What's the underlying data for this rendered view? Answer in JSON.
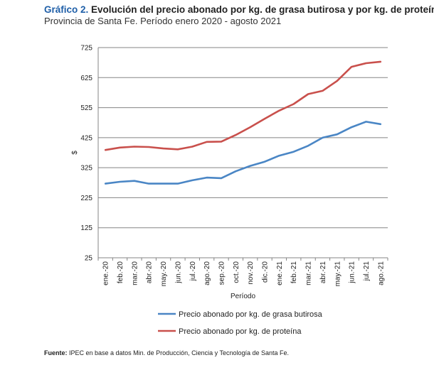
{
  "header": {
    "title_prefix": "Gráfico 2.",
    "title_rest": "Evolución del precio abonado por kg. de grasa butirosa y por kg. de proteína.",
    "subtitle": "Provincia de Santa Fe. Período enero 2020 - agosto 2021"
  },
  "footer": {
    "source_label": "Fuente:",
    "source_text": "IPEC en base a datos Min. de Producción, Ciencia y Tecnología de Santa Fe."
  },
  "chart_data": {
    "type": "line",
    "xlabel": "Período",
    "ylabel": "$",
    "ylim": [
      25,
      725
    ],
    "yticks": [
      "725",
      "625",
      "525",
      "425",
      "325",
      "225",
      "125",
      "25"
    ],
    "grid": true,
    "legend_position": "bottom",
    "categories": [
      "ene.-20",
      "feb.-20",
      "mar.-20",
      "abr.-20",
      "may.-20",
      "jun.-20",
      "jul.-20",
      "ago.-20",
      "sep.-20",
      "oct.-20",
      "nov.-20",
      "dic.-20",
      "ene.-21",
      "feb.-21",
      "mar.-21",
      "abr.-21",
      "may.-21",
      "jun.-21",
      "jul.-21",
      "ago.-21"
    ],
    "series": [
      {
        "name": "Precio abonado por kg. de grasa butirosa",
        "color": "#4a86c5",
        "values": [
          272,
          278,
          281,
          272,
          272,
          272,
          283,
          292,
          290,
          313,
          331,
          345,
          365,
          378,
          398,
          425,
          436,
          460,
          478,
          470
        ]
      },
      {
        "name": "Precio abonado por kg. de proteína",
        "color": "#c9504c",
        "values": [
          384,
          392,
          395,
          394,
          389,
          386,
          395,
          411,
          412,
          434,
          460,
          488,
          515,
          537,
          570,
          581,
          614,
          661,
          673,
          678
        ]
      }
    ]
  }
}
